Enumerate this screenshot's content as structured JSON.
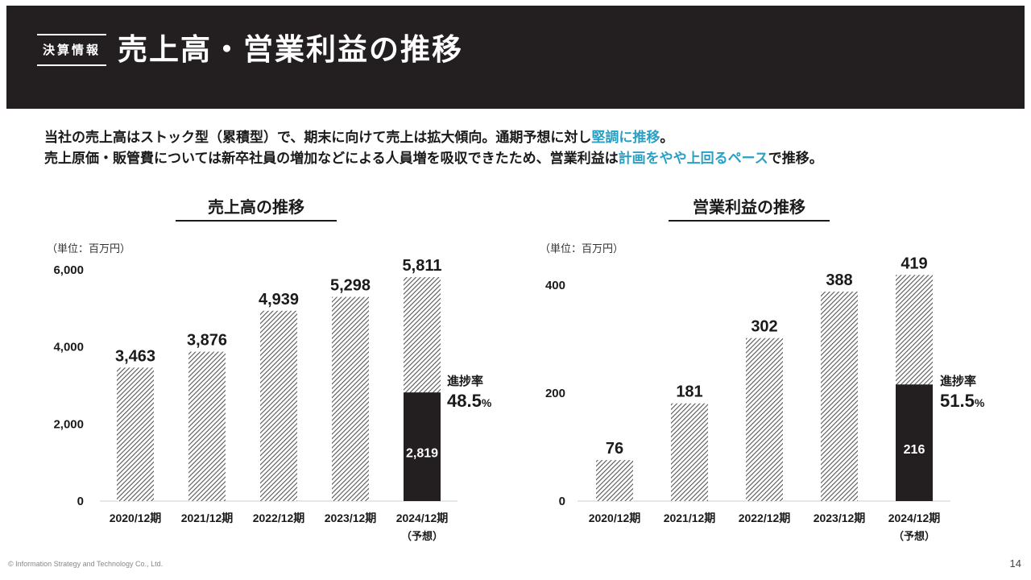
{
  "header": {
    "section_tag": "決算情報",
    "title": "売上高・営業利益の推移"
  },
  "intro": {
    "line1_a": "当社の売上高はストック型（累積型）で、期末に向けて売上は拡大傾向。通期予想に対し",
    "line1_hl": "堅調に推移",
    "line1_b": "。",
    "line2_a": "売上原価・販管費については新卒社員の増加などによる人員増を吸収できたため、営業利益は",
    "line2_hl": "計画をやや上回るペース",
    "line2_b": "で推移。"
  },
  "colors": {
    "header_bg": "#231f20",
    "highlight": "#2aa0c4",
    "actual_bar": "#231f20",
    "hatch": "#555555"
  },
  "chart_data": [
    {
      "type": "bar",
      "title": "売上高の推移",
      "unit_label": "（単位：百万円）",
      "categories": [
        "2020/12期",
        "2021/12期",
        "2022/12期",
        "2023/12期",
        "2024/12期"
      ],
      "category_note": [
        "",
        "",
        "",
        "",
        "（予想）"
      ],
      "values": [
        3463,
        3876,
        4939,
        5298,
        5811
      ],
      "value_labels": [
        "3,463",
        "3,876",
        "4,939",
        "5,298",
        "5,811"
      ],
      "ylim": [
        0,
        6000
      ],
      "yticks": [
        0,
        2000,
        4000,
        6000
      ],
      "ytick_labels": [
        "0",
        "2,000",
        "4,000",
        "6,000"
      ],
      "actual_value": 2819,
      "actual_label": "2,819",
      "progress": {
        "label": "進捗率",
        "value": "48.5",
        "unit": "%"
      }
    },
    {
      "type": "bar",
      "title": "営業利益の推移",
      "unit_label": "（単位：百万円）",
      "categories": [
        "2020/12期",
        "2021/12期",
        "2022/12期",
        "2023/12期",
        "2024/12期"
      ],
      "category_note": [
        "",
        "",
        "",
        "",
        "（予想）"
      ],
      "values": [
        76,
        181,
        302,
        388,
        419
      ],
      "value_labels": [
        "76",
        "181",
        "302",
        "388",
        "419"
      ],
      "ylim": [
        0,
        400
      ],
      "yticks": [
        0,
        200,
        400
      ],
      "ytick_labels": [
        "0",
        "200",
        "400"
      ],
      "actual_value": 216,
      "actual_label": "216",
      "progress": {
        "label": "進捗率",
        "value": "51.5",
        "unit": "%"
      }
    }
  ],
  "footer": {
    "copyright": "© Information Strategy and Technology Co., Ltd.",
    "page_number": "14"
  }
}
